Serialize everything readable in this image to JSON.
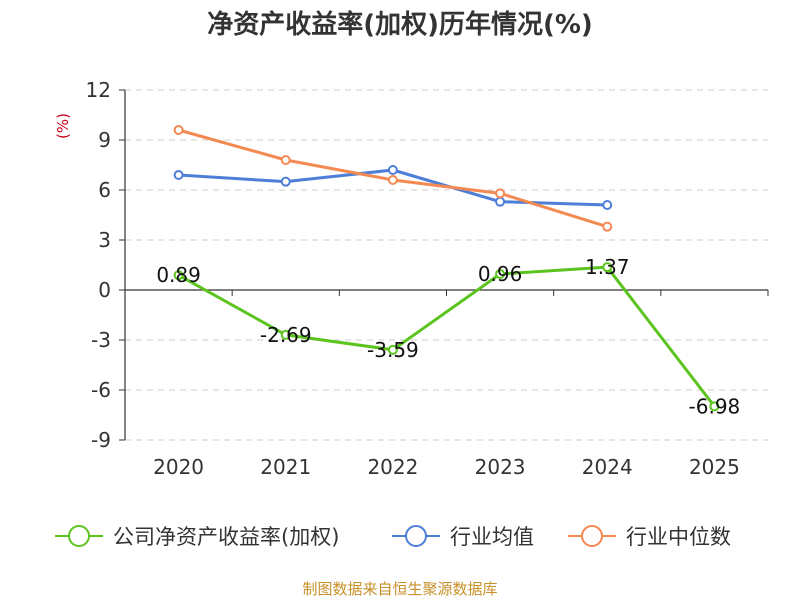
{
  "chart_data": {
    "type": "line",
    "title": "净资产收益率(加权)历年情况(%)",
    "ylabel": "(%)",
    "xlabel": "",
    "categories": [
      "2020",
      "2021",
      "2022",
      "2023",
      "2024",
      "2025"
    ],
    "ylim": [
      -9,
      12
    ],
    "yticks": [
      12,
      9,
      6,
      3,
      0,
      -3,
      -6,
      -9
    ],
    "grid": true,
    "legend_position": "bottom",
    "series": [
      {
        "name": "公司净资产收益率(加权)",
        "color": "#5cc41f",
        "values": [
          0.89,
          -2.69,
          -3.59,
          0.96,
          1.37,
          -6.98
        ],
        "labels": [
          "0.89",
          "-2.69",
          "-3.59",
          "0.96",
          "1.37",
          "-6.98"
        ]
      },
      {
        "name": "行业均值",
        "color": "#4e7fd8",
        "values": [
          6.9,
          6.5,
          7.2,
          5.3,
          5.1,
          null
        ]
      },
      {
        "name": "行业中位数",
        "color": "#f48a52",
        "values": [
          9.6,
          7.8,
          6.6,
          5.8,
          3.8,
          null
        ]
      }
    ],
    "source": "制图数据来自恒生聚源数据库"
  }
}
